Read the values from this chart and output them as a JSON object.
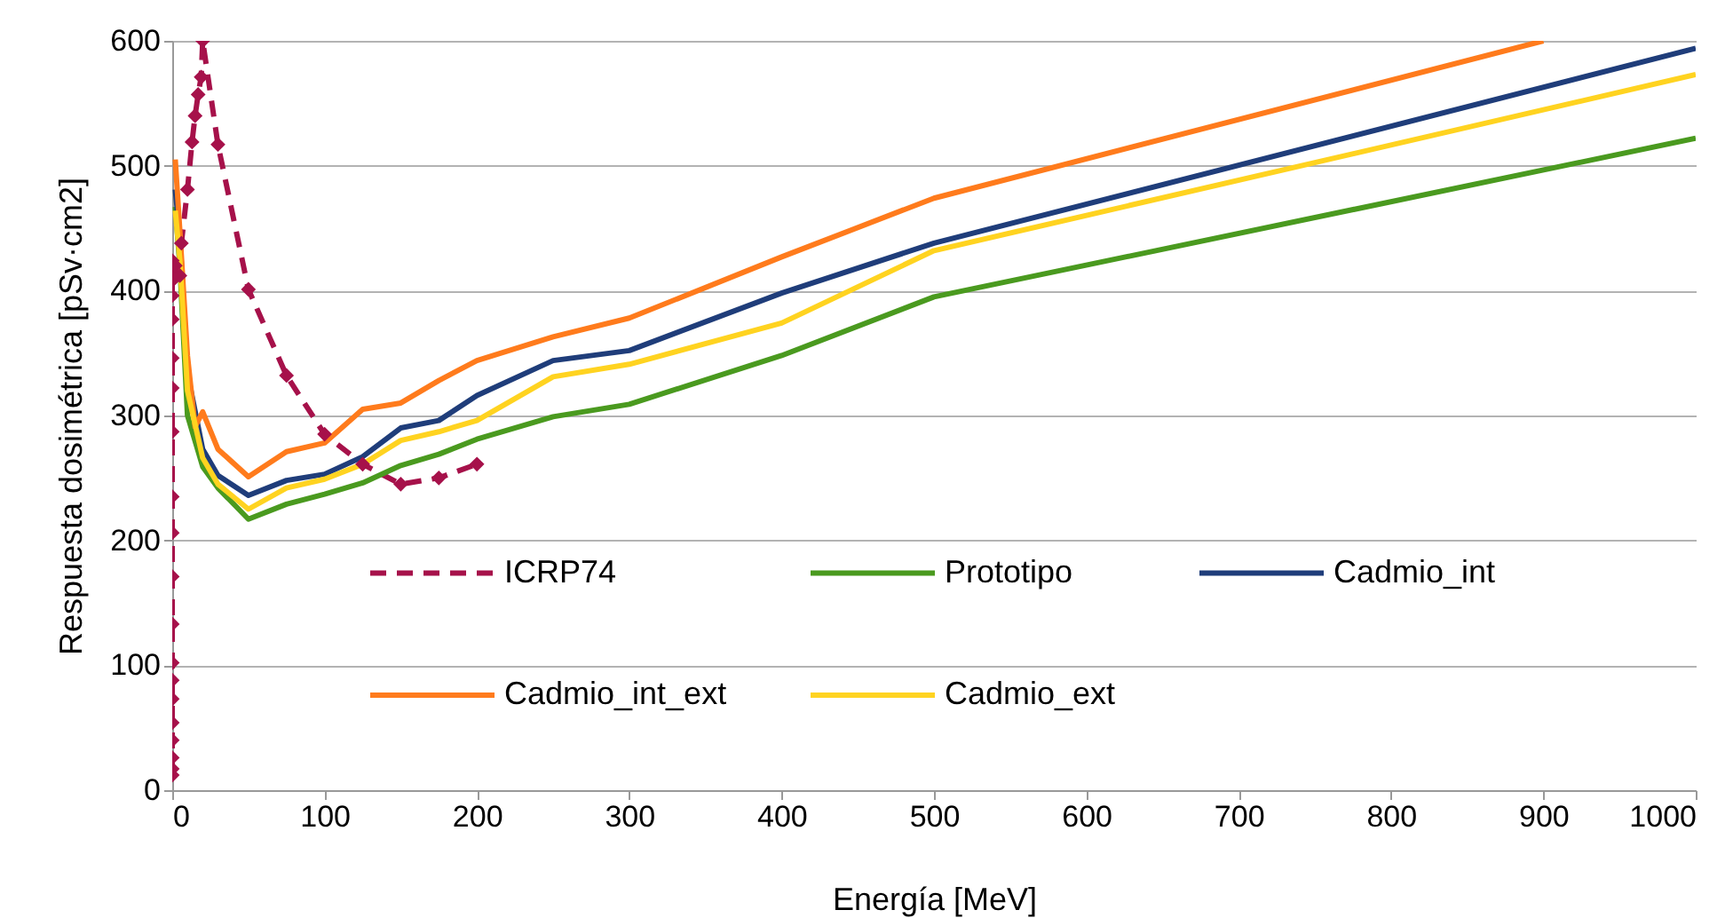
{
  "chart_data": {
    "type": "line",
    "xlabel": "Energía [MeV]",
    "ylabel": "Respuesta dosimétrica [pSv·cm2]",
    "xlim": [
      0,
      1000
    ],
    "ylim": [
      0,
      600
    ],
    "xticks": [
      0,
      100,
      200,
      300,
      400,
      500,
      600,
      700,
      800,
      900,
      1000
    ],
    "yticks": [
      0,
      100,
      200,
      300,
      400,
      500,
      600
    ],
    "grid": "y",
    "legend": "bottom",
    "series": [
      {
        "name": "ICRP74",
        "color": "#a6114a",
        "line_style": "dashed",
        "marker": "diamond",
        "x": [
          0,
          0,
          0,
          0,
          0,
          0,
          0,
          0,
          0,
          0,
          0,
          0,
          0,
          0,
          0,
          0,
          0,
          0,
          0,
          0,
          1,
          2,
          5,
          6,
          10,
          13,
          15,
          17,
          19,
          20,
          30,
          50,
          75,
          100,
          125,
          150,
          175,
          200
        ],
        "values": [
          12,
          17,
          26,
          40,
          54,
          73,
          88,
          102,
          133,
          171,
          206,
          235,
          287,
          322,
          346,
          377,
          396,
          408,
          415,
          424,
          410,
          420,
          412,
          438,
          481,
          519,
          540,
          557,
          571,
          600,
          517,
          401,
          332,
          285,
          261,
          245,
          250,
          261
        ]
      },
      {
        "name": "Prototipo",
        "color": "#4a9a1f",
        "line_style": "solid",
        "marker": "none",
        "x": [
          2,
          5,
          10,
          20,
          30,
          50,
          75,
          100,
          125,
          150,
          175,
          200,
          250,
          300,
          400,
          500,
          1000
        ],
        "values": [
          467,
          420,
          300,
          259,
          242,
          217,
          229,
          237,
          246,
          260,
          269,
          281,
          299,
          309,
          348,
          395,
          522
        ]
      },
      {
        "name": "Cadmio_int",
        "color": "#1f3d7a",
        "line_style": "solid",
        "marker": "none",
        "x": [
          2,
          5,
          10,
          20,
          30,
          50,
          75,
          100,
          125,
          150,
          175,
          200,
          250,
          300,
          400,
          500,
          1000
        ],
        "values": [
          481,
          443,
          334,
          273,
          252,
          236,
          248,
          253,
          267,
          290,
          296,
          316,
          344,
          352,
          398,
          438,
          594
        ]
      },
      {
        "name": "Cadmio_int_ext",
        "color": "#ff7b1c",
        "line_style": "solid",
        "marker": "none",
        "x": [
          2,
          5,
          10,
          15,
          20,
          30,
          50,
          75,
          100,
          125,
          150,
          175,
          200,
          250,
          300,
          400,
          500,
          900
        ],
        "values": [
          505,
          448,
          348,
          291,
          303,
          273,
          251,
          271,
          278,
          305,
          310,
          328,
          344,
          363,
          378,
          427,
          474,
          600
        ]
      },
      {
        "name": "Cadmio_ext",
        "color": "#ffd320",
        "line_style": "solid",
        "marker": "none",
        "x": [
          2,
          5,
          10,
          20,
          30,
          50,
          75,
          100,
          125,
          150,
          175,
          200,
          250,
          300,
          400,
          500,
          1000
        ],
        "values": [
          464,
          425,
          320,
          266,
          245,
          225,
          242,
          249,
          261,
          280,
          287,
          296,
          331,
          341,
          374,
          432,
          573
        ]
      }
    ]
  }
}
